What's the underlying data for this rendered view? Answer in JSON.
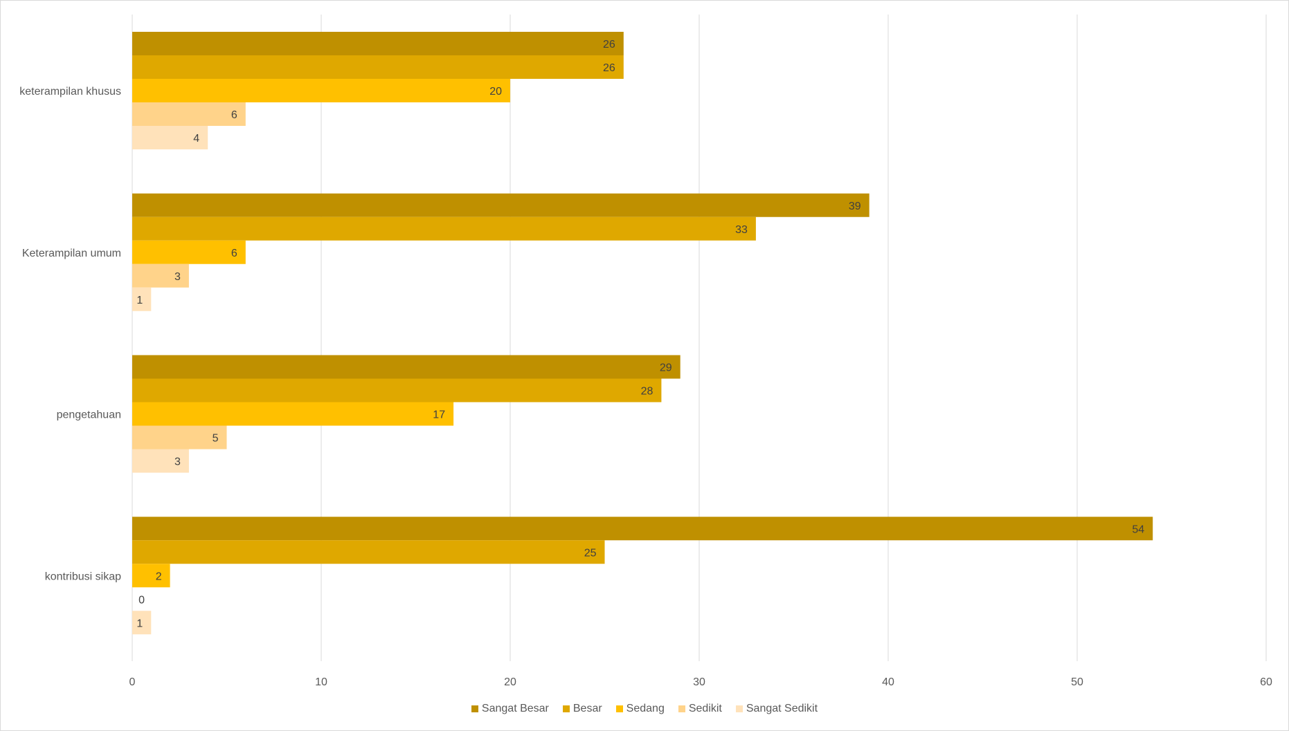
{
  "chart_data": {
    "type": "bar",
    "orientation": "horizontal",
    "categories": [
      "keterampilan khusus",
      "Keterampilan umum",
      "pengetahuan",
      "kontribusi sikap"
    ],
    "series": [
      {
        "name": "Sangat Besar",
        "color": "#BF9000",
        "values": [
          26,
          39,
          29,
          54
        ]
      },
      {
        "name": "Besar",
        "color": "#DFA800",
        "values": [
          26,
          33,
          28,
          25
        ]
      },
      {
        "name": "Sedang",
        "color": "#FFC000",
        "values": [
          20,
          6,
          17,
          2
        ]
      },
      {
        "name": "Sedikit",
        "color": "#FFD38A",
        "values": [
          6,
          3,
          5,
          0
        ]
      },
      {
        "name": "Sangat Sedikit",
        "color": "#FFE2BA",
        "values": [
          4,
          1,
          3,
          1
        ]
      }
    ],
    "xlim": [
      0,
      60
    ],
    "xticks": [
      "0",
      "10",
      "20",
      "30",
      "40",
      "50",
      "60"
    ],
    "grid": true,
    "legend_position": "bottom",
    "title": "",
    "xlabel": "",
    "ylabel": ""
  }
}
